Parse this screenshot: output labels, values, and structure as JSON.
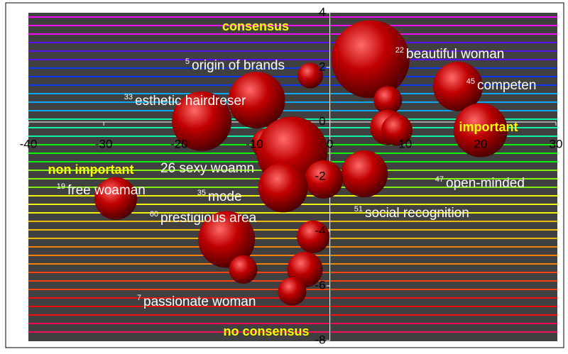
{
  "chart_data": {
    "type": "bubble",
    "annotations": [
      "consensus",
      "non important",
      "important",
      "no consensus"
    ],
    "labels": [
      {
        "id": 5,
        "text": "origin of brands"
      },
      {
        "id": 22,
        "text": "beautiful woman"
      },
      {
        "id": 33,
        "text": "esthetic hairdreser"
      },
      {
        "id": 45,
        "text": "competen"
      },
      {
        "text": "26 sexy woamn"
      },
      {
        "id": 19,
        "text": "free woaman"
      },
      {
        "id": 35,
        "text": "mode"
      },
      {
        "id": 60,
        "text": "prestigious area"
      },
      {
        "id": 47,
        "text": "open-minded"
      },
      {
        "id": 51,
        "text": "social recognition"
      },
      {
        "id": 7,
        "text": "passionate woman"
      }
    ],
    "series": [
      {
        "color": "#c00000",
        "x": [
          5.4,
          -2.6,
          7.7,
          17,
          -9.7,
          7.7,
          8.9,
          20,
          -17,
          -8.3,
          -5,
          4.6,
          -0.8,
          -6.2,
          -28.4,
          -13.7,
          -2.2,
          -11.5,
          -3.3,
          -5
        ],
        "values": [
          2.3,
          1.7,
          0.8,
          1.3,
          0.8,
          -0.2,
          -0.3,
          -0.3,
          0.03,
          -0.8,
          -1.1,
          -1.9,
          -2.1,
          -2.4,
          -2.8,
          -4.3,
          -4.2,
          -5.4,
          -5.4,
          -6.2
        ],
        "sizes": [
          55,
          18,
          20,
          35,
          40,
          25,
          22,
          38,
          42,
          22,
          50,
          33,
          27,
          35,
          30,
          40,
          23,
          20,
          25,
          20
        ]
      }
    ],
    "xlim": [
      -40,
      30
    ],
    "xticks": [
      -40,
      -30,
      -20,
      -10,
      0,
      10,
      20,
      30
    ],
    "ylim": [
      -8,
      4
    ],
    "yticks": [
      -8,
      -6,
      -4,
      -2,
      0,
      2,
      4
    ]
  }
}
